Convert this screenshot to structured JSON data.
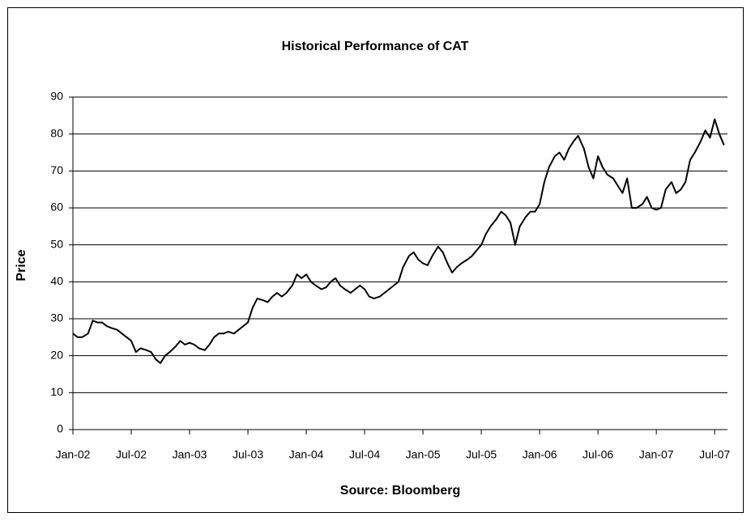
{
  "chart_data": {
    "type": "line",
    "title": "Historical Performance of CAT",
    "y_label": "Price",
    "x_label": "Source: Bloomberg",
    "xlim": [
      2002,
      2007.61
    ],
    "ylim": [
      0,
      90
    ],
    "xticks": [
      {
        "value": 2002,
        "label": "Jan-02"
      },
      {
        "value": 2002.5,
        "label": "Jul-02"
      },
      {
        "value": 2003,
        "label": "Jan-03"
      },
      {
        "value": 2003.5,
        "label": "Jul-03"
      },
      {
        "value": 2004,
        "label": "Jan-04"
      },
      {
        "value": 2004.5,
        "label": "Jul-04"
      },
      {
        "value": 2005,
        "label": "Jan-05"
      },
      {
        "value": 2005.5,
        "label": "Jul-05"
      },
      {
        "value": 2006,
        "label": "Jan-06"
      },
      {
        "value": 2006.5,
        "label": "Jul-06"
      },
      {
        "value": 2007,
        "label": "Jan-07"
      },
      {
        "value": 2007.5,
        "label": "Jul-07"
      }
    ],
    "yticks": [
      0,
      10,
      20,
      30,
      40,
      50,
      60,
      70,
      80,
      90
    ],
    "grid": true,
    "x": [
      2002.0,
      2002.04,
      2002.08,
      2002.13,
      2002.17,
      2002.21,
      2002.25,
      2002.29,
      2002.33,
      2002.38,
      2002.42,
      2002.46,
      2002.5,
      2002.54,
      2002.58,
      2002.63,
      2002.67,
      2002.71,
      2002.75,
      2002.79,
      2002.83,
      2002.88,
      2002.92,
      2002.96,
      2003.0,
      2003.04,
      2003.08,
      2003.13,
      2003.17,
      2003.21,
      2003.25,
      2003.29,
      2003.33,
      2003.38,
      2003.42,
      2003.46,
      2003.5,
      2003.54,
      2003.58,
      2003.63,
      2003.67,
      2003.71,
      2003.75,
      2003.79,
      2003.83,
      2003.88,
      2003.92,
      2003.96,
      2004.0,
      2004.04,
      2004.08,
      2004.13,
      2004.17,
      2004.21,
      2004.25,
      2004.29,
      2004.33,
      2004.38,
      2004.42,
      2004.46,
      2004.5,
      2004.54,
      2004.58,
      2004.63,
      2004.67,
      2004.71,
      2004.75,
      2004.79,
      2004.83,
      2004.88,
      2004.92,
      2004.96,
      2005.0,
      2005.04,
      2005.08,
      2005.13,
      2005.17,
      2005.21,
      2005.25,
      2005.29,
      2005.33,
      2005.38,
      2005.42,
      2005.46,
      2005.5,
      2005.54,
      2005.58,
      2005.63,
      2005.67,
      2005.71,
      2005.75,
      2005.79,
      2005.83,
      2005.88,
      2005.92,
      2005.96,
      2006.0,
      2006.04,
      2006.08,
      2006.13,
      2006.17,
      2006.21,
      2006.25,
      2006.29,
      2006.33,
      2006.38,
      2006.42,
      2006.46,
      2006.5,
      2006.54,
      2006.58,
      2006.63,
      2006.67,
      2006.71,
      2006.75,
      2006.79,
      2006.83,
      2006.88,
      2006.92,
      2006.96,
      2007.0,
      2007.04,
      2007.08,
      2007.13,
      2007.17,
      2007.21,
      2007.25,
      2007.29,
      2007.33,
      2007.38,
      2007.42,
      2007.46,
      2007.5,
      2007.54,
      2007.58
    ],
    "series": [
      {
        "name": "CAT",
        "color": "#000000",
        "values": [
          26,
          25,
          25,
          26,
          29.5,
          29,
          29,
          28,
          27.5,
          27,
          26,
          25,
          24,
          21,
          22,
          21.5,
          21,
          19,
          18,
          20,
          21,
          22.5,
          24,
          23,
          23.5,
          23,
          22,
          21.5,
          23,
          25,
          26,
          26,
          26.5,
          26,
          27,
          28,
          29,
          33,
          35.5,
          35,
          34.5,
          36,
          37,
          36,
          37,
          39,
          42,
          41,
          42,
          40,
          39,
          38,
          38.5,
          40,
          41,
          39,
          38,
          37,
          38,
          39,
          38,
          36,
          35.5,
          36,
          37,
          38,
          39,
          40,
          44,
          47,
          48,
          46,
          45,
          44.5,
          47,
          49.5,
          48,
          45,
          42.5,
          44,
          45,
          46,
          47,
          48.5,
          50,
          53,
          55,
          57,
          59,
          58,
          56,
          50,
          55,
          57.5,
          59,
          59,
          61,
          67,
          71,
          74,
          75,
          73,
          76,
          78,
          79.5,
          76,
          71,
          68,
          74,
          71,
          69,
          68,
          66,
          64,
          68,
          60,
          60,
          61,
          63,
          60,
          59.5,
          60,
          65,
          67,
          64,
          65,
          67,
          73,
          75,
          78,
          81,
          79,
          84,
          80,
          77
        ]
      }
    ]
  }
}
